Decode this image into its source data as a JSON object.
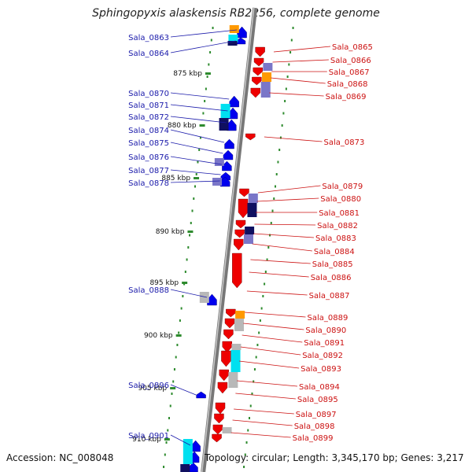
{
  "title": "Sphingopyxis alaskensis RB2256, complete genome",
  "footer": {
    "accession": "Accession: NC_008048",
    "summary": "Topology: circular; Length: 3,345,170 bp; Genes: 3,217"
  },
  "colors": {
    "backbone": "#888888",
    "left_label": "#1a1aaa",
    "right_label": "#cc1111",
    "forward_gene": "#0000ee",
    "reverse_gene": "#ee0000",
    "ruler": "#2e8b2e",
    "cyan": "#00e0f0",
    "navy": "#101060",
    "lavender": "#7a76c8",
    "orange": "#ff9900",
    "grey": "#b8b8b8"
  },
  "kbp_marks": [
    "875 kbp",
    "880 kbp",
    "885 kbp",
    "890 kbp",
    "895 kbp",
    "900 kbp",
    "905 kbp",
    "910 kbp"
  ],
  "left_genes": [
    "Sala_0863",
    "Sala_0864",
    "Sala_0870",
    "Sala_0871",
    "Sala_0872",
    "Sala_0874",
    "Sala_0875",
    "Sala_0876",
    "Sala_0877",
    "Sala_0878",
    "Sala_0888",
    "Sala_0896",
    "Sala_0901"
  ],
  "right_genes": [
    "Sala_0865",
    "Sala_0866",
    "Sala_0867",
    "Sala_0868",
    "Sala_0869",
    "Sala_0873",
    "Sala_0879",
    "Sala_0880",
    "Sala_0881",
    "Sala_0882",
    "Sala_0883",
    "Sala_0884",
    "Sala_0885",
    "Sala_0886",
    "Sala_0887",
    "Sala_0889",
    "Sala_0890",
    "Sala_0891",
    "Sala_0892",
    "Sala_0893",
    "Sala_0894",
    "Sala_0895",
    "Sala_0897",
    "Sala_0898",
    "Sala_0899"
  ]
}
